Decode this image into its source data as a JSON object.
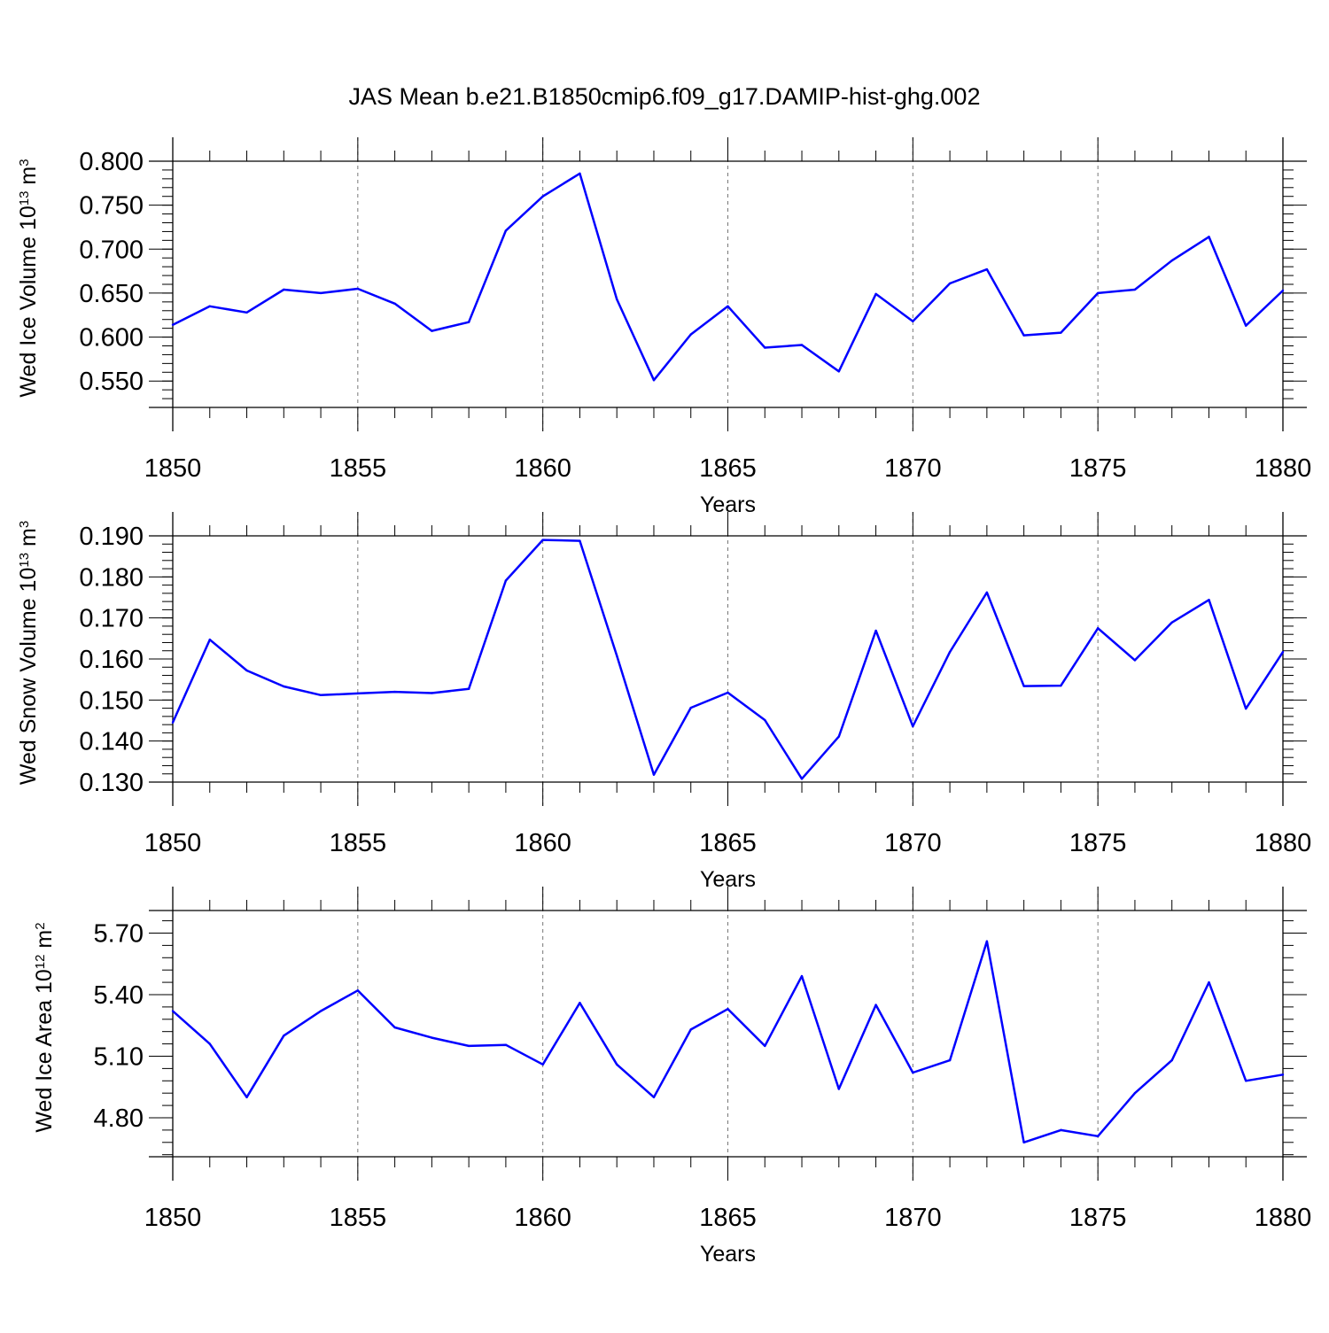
{
  "title": "JAS Mean b.e21.B1850cmip6.f09_g17.DAMIP-hist-ghg.002",
  "line_color": "#0000ff",
  "chart_data": [
    {
      "type": "line",
      "ylabel": {
        "text": "Wed Ice Volume 10",
        "exp": "13",
        "unit": " m",
        "unit_exp": "3"
      },
      "xlabel": "Years",
      "xlim": [
        1850,
        1880
      ],
      "ylim": [
        0.52,
        0.8
      ],
      "x_ticks": [
        "1850",
        "1855",
        "1860",
        "1865",
        "1870",
        "1875",
        "1880"
      ],
      "y_ticks": [
        "0.550",
        "0.600",
        "0.650",
        "0.700",
        "0.750",
        "0.800"
      ],
      "grid": "vertical-dashed",
      "x": [
        1850,
        1851,
        1852,
        1853,
        1854,
        1855,
        1856,
        1857,
        1858,
        1859,
        1860,
        1861,
        1862,
        1863,
        1864,
        1865,
        1866,
        1867,
        1868,
        1869,
        1870,
        1871,
        1872,
        1873,
        1874,
        1875,
        1876,
        1877,
        1878,
        1879,
        1880
      ],
      "values": [
        0.614,
        0.635,
        0.628,
        0.654,
        0.65,
        0.655,
        0.638,
        0.607,
        0.617,
        0.721,
        0.76,
        0.786,
        0.643,
        0.551,
        0.603,
        0.635,
        0.588,
        0.591,
        0.561,
        0.649,
        0.618,
        0.661,
        0.677,
        0.602,
        0.605,
        0.65,
        0.654,
        0.687,
        0.714,
        0.613,
        0.653
      ]
    },
    {
      "type": "line",
      "ylabel": {
        "text": "Wed Snow Volume 10",
        "exp": "13",
        "unit": " m",
        "unit_exp": "3"
      },
      "xlabel": "Years",
      "xlim": [
        1850,
        1880
      ],
      "ylim": [
        0.13,
        0.19
      ],
      "x_ticks": [
        "1850",
        "1855",
        "1860",
        "1865",
        "1870",
        "1875",
        "1880"
      ],
      "y_ticks": [
        "0.130",
        "0.140",
        "0.150",
        "0.160",
        "0.170",
        "0.180",
        "0.190"
      ],
      "grid": "vertical-dashed",
      "x": [
        1850,
        1851,
        1852,
        1853,
        1854,
        1855,
        1856,
        1857,
        1858,
        1859,
        1860,
        1861,
        1862,
        1863,
        1864,
        1865,
        1866,
        1867,
        1868,
        1869,
        1870,
        1871,
        1872,
        1873,
        1874,
        1875,
        1876,
        1877,
        1878,
        1879,
        1880
      ],
      "values": [
        0.1445,
        0.1647,
        0.1572,
        0.1533,
        0.1512,
        0.1516,
        0.152,
        0.1517,
        0.1527,
        0.1791,
        0.189,
        0.1888,
        0.1608,
        0.1318,
        0.1481,
        0.1518,
        0.1451,
        0.1308,
        0.1411,
        0.1669,
        0.1436,
        0.1617,
        0.1762,
        0.1534,
        0.1535,
        0.1675,
        0.1597,
        0.1689,
        0.1744,
        0.1479,
        0.1617
      ]
    },
    {
      "type": "line",
      "ylabel": {
        "text": "Wed Ice Area 10",
        "exp": "12",
        "unit": " m",
        "unit_exp": "2"
      },
      "xlabel": "Years",
      "xlim": [
        1850,
        1880
      ],
      "ylim": [
        4.61,
        5.81
      ],
      "x_ticks": [
        "1850",
        "1855",
        "1860",
        "1865",
        "1870",
        "1875",
        "1880"
      ],
      "y_ticks": [
        "4.80",
        "5.10",
        "5.40",
        "5.70"
      ],
      "grid": "vertical-dashed",
      "x": [
        1850,
        1851,
        1852,
        1853,
        1854,
        1855,
        1856,
        1857,
        1858,
        1859,
        1860,
        1861,
        1862,
        1863,
        1864,
        1865,
        1866,
        1867,
        1868,
        1869,
        1870,
        1871,
        1872,
        1873,
        1874,
        1875,
        1876,
        1877,
        1878,
        1879,
        1880
      ],
      "values": [
        5.32,
        5.16,
        4.9,
        5.2,
        5.32,
        5.42,
        5.24,
        5.19,
        5.15,
        5.155,
        5.06,
        5.36,
        5.06,
        4.9,
        5.23,
        5.33,
        5.15,
        5.49,
        4.94,
        5.35,
        5.02,
        5.08,
        5.66,
        4.68,
        4.74,
        4.71,
        4.92,
        5.08,
        5.46,
        4.98,
        5.01
      ]
    }
  ]
}
